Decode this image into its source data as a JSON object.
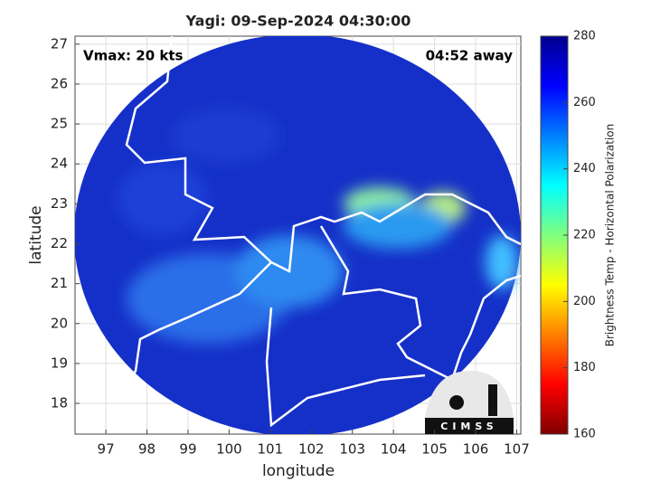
{
  "chart_data": {
    "type": "map",
    "title": "Yagi: 09-Sep-2024 04:30:00",
    "annotations": [
      "Vmax: 20 kts",
      "04:52 away"
    ],
    "xlabel": "longitude",
    "ylabel": "latitude",
    "xlim": [
      96.25,
      107.1
    ],
    "xticks": [
      97,
      98,
      99,
      100,
      101,
      102,
      103,
      104,
      105,
      106,
      107
    ],
    "ylim": [
      17.23,
      27.2
    ],
    "yticks": [
      18,
      19,
      20,
      21,
      22,
      23,
      24,
      25,
      26,
      27
    ],
    "grid": true,
    "colorbar": {
      "label": "Brightness Temp - Horizontal Polarization",
      "clim": [
        160,
        280
      ],
      "ticks": [
        160,
        180,
        200,
        220,
        240,
        260,
        280
      ],
      "colormap": "jet"
    },
    "logo_text": "CIMSS"
  }
}
